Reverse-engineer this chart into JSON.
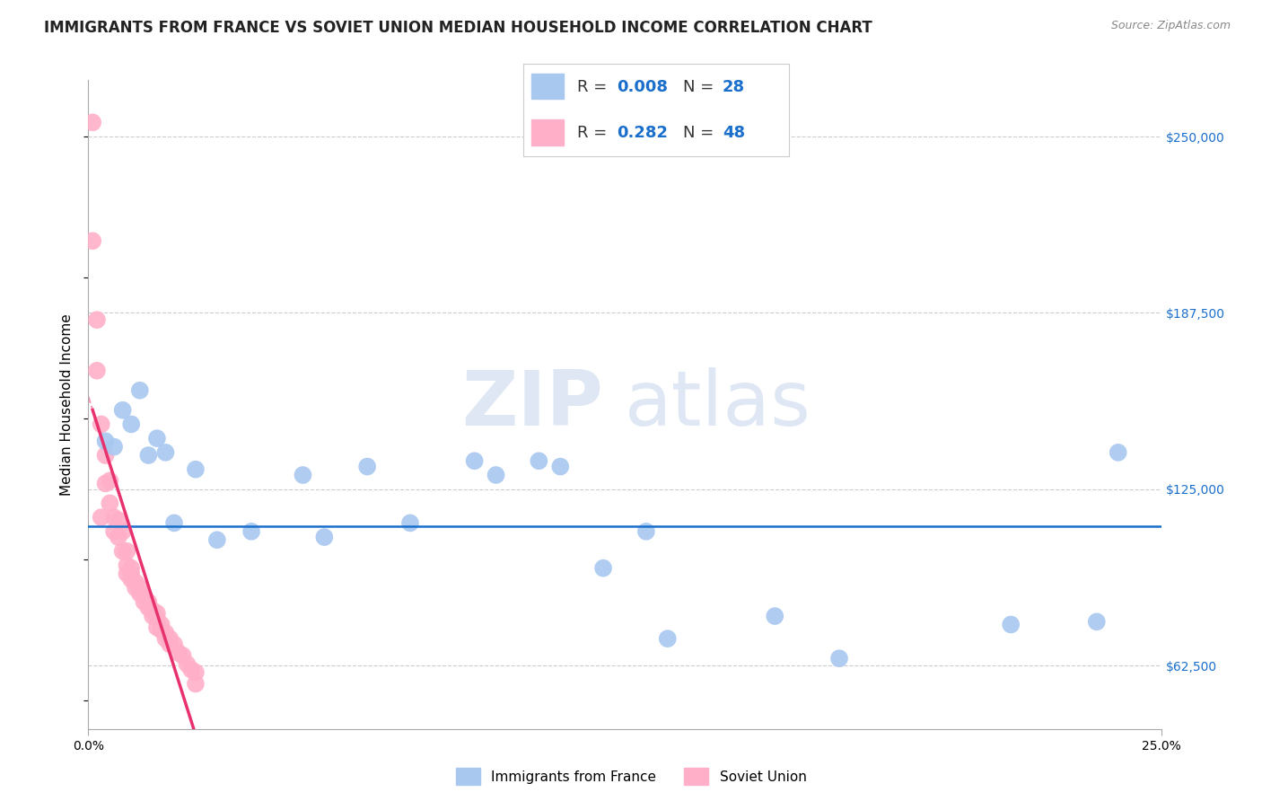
{
  "title": "IMMIGRANTS FROM FRANCE VS SOVIET UNION MEDIAN HOUSEHOLD INCOME CORRELATION CHART",
  "source": "Source: ZipAtlas.com",
  "ylabel": "Median Household Income",
  "xlim": [
    0.0,
    0.25
  ],
  "ylim": [
    40000,
    270000
  ],
  "yticks": [
    62500,
    125000,
    187500,
    250000
  ],
  "ytick_labels": [
    "$62,500",
    "$125,000",
    "$187,500",
    "$250,000"
  ],
  "xticks": [
    0.0,
    0.25
  ],
  "xtick_labels": [
    "0.0%",
    "25.0%"
  ],
  "watermark_zip": "ZIP",
  "watermark_atlas": "atlas",
  "france_color": "#a8c8f0",
  "soviet_color": "#ffb0c8",
  "trendline_france_color": "#1a6fcc",
  "trendline_soviet_color": "#e8326e",
  "hline_color": "#1a6fcc",
  "background_color": "#ffffff",
  "france_scatter_x": [
    0.004,
    0.006,
    0.008,
    0.01,
    0.012,
    0.014,
    0.016,
    0.018,
    0.02,
    0.025,
    0.03,
    0.038,
    0.05,
    0.055,
    0.065,
    0.075,
    0.09,
    0.095,
    0.105,
    0.11,
    0.12,
    0.13,
    0.135,
    0.16,
    0.175,
    0.215,
    0.235,
    0.24
  ],
  "france_scatter_y": [
    142000,
    140000,
    153000,
    148000,
    160000,
    137000,
    143000,
    138000,
    113000,
    132000,
    107000,
    110000,
    130000,
    108000,
    133000,
    113000,
    135000,
    130000,
    135000,
    133000,
    97000,
    110000,
    72000,
    80000,
    65000,
    77000,
    78000,
    138000
  ],
  "soviet_scatter_x": [
    0.001,
    0.001,
    0.002,
    0.002,
    0.003,
    0.003,
    0.004,
    0.004,
    0.005,
    0.005,
    0.006,
    0.006,
    0.007,
    0.007,
    0.008,
    0.008,
    0.009,
    0.009,
    0.009,
    0.01,
    0.01,
    0.01,
    0.011,
    0.011,
    0.012,
    0.012,
    0.013,
    0.013,
    0.014,
    0.014,
    0.015,
    0.015,
    0.016,
    0.016,
    0.016,
    0.017,
    0.017,
    0.018,
    0.018,
    0.019,
    0.019,
    0.02,
    0.021,
    0.022,
    0.023,
    0.024,
    0.025,
    0.025
  ],
  "soviet_scatter_y": [
    255000,
    213000,
    185000,
    167000,
    148000,
    115000,
    137000,
    127000,
    128000,
    120000,
    115000,
    110000,
    114000,
    108000,
    110000,
    103000,
    103000,
    98000,
    95000,
    97000,
    95000,
    93000,
    92000,
    90000,
    90000,
    88000,
    87000,
    85000,
    85000,
    83000,
    82000,
    80000,
    81000,
    79000,
    76000,
    77000,
    75000,
    74000,
    72000,
    72000,
    70000,
    70000,
    67000,
    66000,
    63000,
    61000,
    60000,
    56000
  ],
  "hline_y": 112000,
  "title_fontsize": 12,
  "axis_label_fontsize": 11,
  "tick_fontsize": 10,
  "legend_fontsize": 13
}
